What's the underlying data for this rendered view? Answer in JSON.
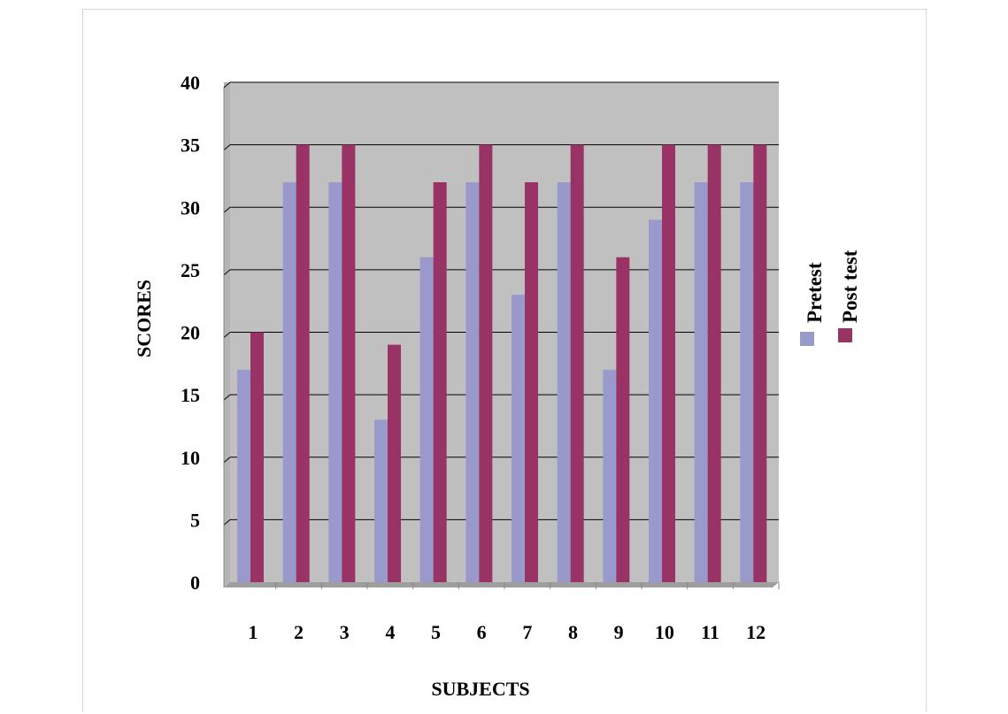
{
  "chart_data": {
    "type": "bar",
    "categories": [
      "1",
      "2",
      "3",
      "4",
      "5",
      "6",
      "7",
      "8",
      "9",
      "10",
      "11",
      "12"
    ],
    "series": [
      {
        "name": "Pretest",
        "values": [
          17,
          32,
          32,
          13,
          26,
          32,
          23,
          32,
          17,
          29,
          32,
          32
        ],
        "color": "#9999cc"
      },
      {
        "name": "Post test",
        "values": [
          20,
          35,
          35,
          19,
          32,
          35,
          32,
          35,
          26,
          35,
          35,
          35
        ],
        "color": "#993366"
      }
    ],
    "xlabel": "SUBJECTS",
    "ylabel": "SCORES",
    "ylim": [
      0,
      40
    ],
    "yticks": [
      "0",
      "5",
      "10",
      "15",
      "20",
      "25",
      "30",
      "35",
      "40"
    ],
    "grid": true,
    "legend_position": "right",
    "plot_background": "#c0c0c0"
  }
}
